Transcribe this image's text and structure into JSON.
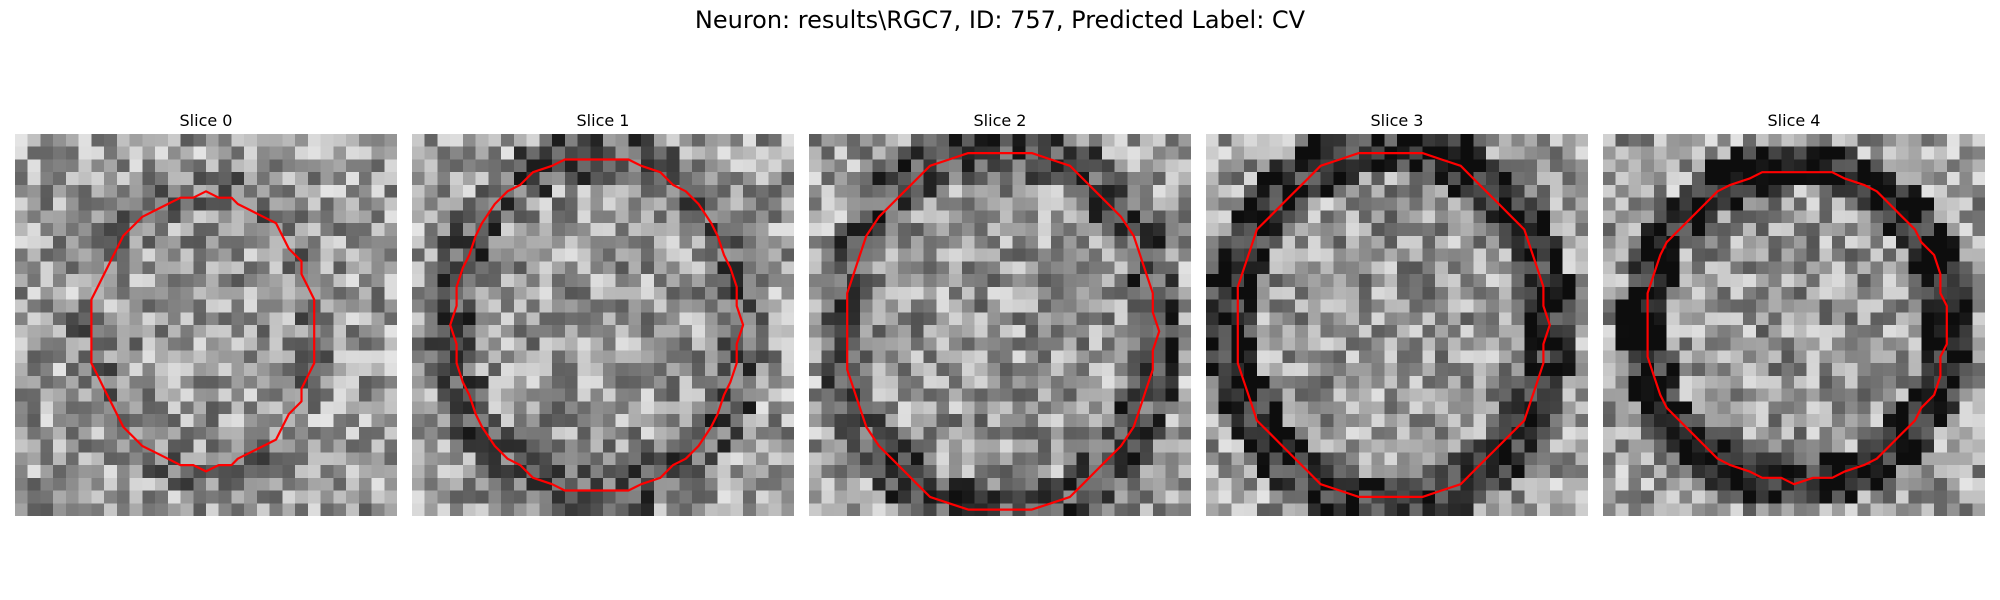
{
  "figure": {
    "title": "Neuron: results\\RGC7, ID: 757, Predicted Label: CV"
  },
  "colors": {
    "contour": "#ff0000",
    "background": "#ffffff"
  },
  "panels": [
    {
      "title": "Slice 0"
    },
    {
      "title": "Slice 1"
    },
    {
      "title": "Slice 2"
    },
    {
      "title": "Slice 3"
    },
    {
      "title": "Slice 4"
    }
  ]
}
